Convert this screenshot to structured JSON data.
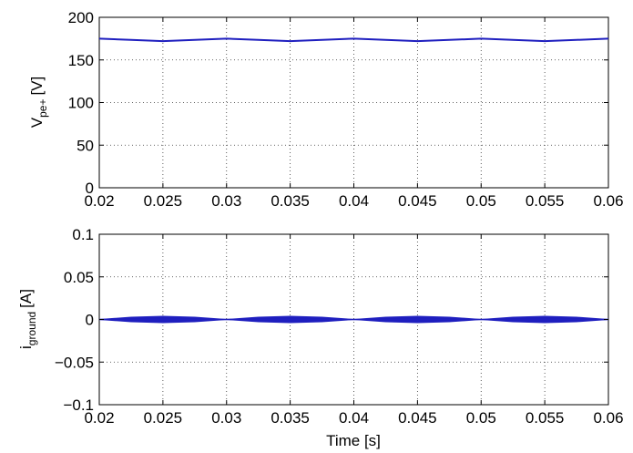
{
  "chart_data": [
    {
      "type": "line",
      "ylabel_main": "V",
      "ylabel_sub": "pe+",
      "ylabel_unit": "[V]",
      "xlabel": "",
      "xlim": [
        0.02,
        0.06
      ],
      "ylim": [
        0,
        200
      ],
      "x_ticks": [
        "0.02",
        "0.025",
        "0.03",
        "0.035",
        "0.04",
        "0.045",
        "0.05",
        "0.055",
        "0.06"
      ],
      "y_ticks": [
        "0",
        "50",
        "100",
        "150",
        "200"
      ],
      "grid": true,
      "series": [
        {
          "color": "#1f1fbf",
          "x": [
            0.02,
            0.0225,
            0.025,
            0.0275,
            0.03,
            0.0325,
            0.035,
            0.0375,
            0.04,
            0.0425,
            0.045,
            0.0475,
            0.05,
            0.0525,
            0.055,
            0.0575,
            0.06
          ],
          "y": [
            175,
            173.5,
            172,
            173.5,
            175,
            173.5,
            172,
            173.5,
            175,
            173.5,
            172,
            173.5,
            175,
            173.5,
            172,
            173.5,
            175
          ]
        }
      ]
    },
    {
      "type": "area",
      "ylabel_main": "i",
      "ylabel_sub": "ground",
      "ylabel_unit": "[A]",
      "xlabel": "Time [s]",
      "xlim": [
        0.02,
        0.06
      ],
      "ylim": [
        -0.1,
        0.1
      ],
      "x_ticks": [
        "0.02",
        "0.025",
        "0.03",
        "0.035",
        "0.04",
        "0.045",
        "0.05",
        "0.055",
        "0.06"
      ],
      "y_ticks": [
        "−0.1",
        "−0.05",
        "0",
        "0.05",
        "0.1"
      ],
      "grid": true,
      "series": [
        {
          "color": "#1f1fbf",
          "x": [
            0.02,
            0.0225,
            0.025,
            0.0275,
            0.03,
            0.0325,
            0.035,
            0.0375,
            0.04,
            0.0425,
            0.045,
            0.0475,
            0.05,
            0.0525,
            0.055,
            0.0575,
            0.06
          ],
          "upper": [
            0,
            0.0027,
            0.0038,
            0.0027,
            0,
            0.0027,
            0.0038,
            0.0027,
            0,
            0.0027,
            0.0038,
            0.0027,
            0,
            0.0027,
            0.0038,
            0.0027,
            0
          ],
          "lower": [
            0,
            -0.0027,
            -0.0038,
            -0.0027,
            0,
            -0.0027,
            -0.0038,
            -0.0027,
            0,
            -0.0027,
            -0.0038,
            -0.0027,
            0,
            -0.0027,
            -0.0038,
            -0.0027,
            0
          ]
        }
      ]
    }
  ]
}
